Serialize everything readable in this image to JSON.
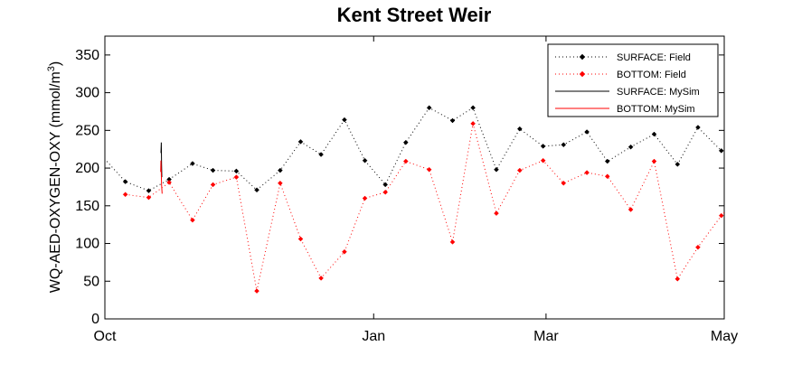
{
  "chart_data": {
    "type": "line",
    "title": "Kent Street Weir",
    "ylabel_main": "WQ-AED-OXYGEN-OXY (mmol/m",
    "ylabel_sup": "3",
    "ylabel_close": ")",
    "xlabel": "",
    "ylim": [
      0,
      375
    ],
    "yticks": [
      0,
      50,
      100,
      150,
      200,
      250,
      300,
      350
    ],
    "xlim": [
      0,
      212
    ],
    "xticks": [
      {
        "label": "Oct",
        "x": 0
      },
      {
        "label": "Jan",
        "x": 92
      },
      {
        "label": "Mar",
        "x": 151
      },
      {
        "label": "May",
        "x": 212
      }
    ],
    "grid": false,
    "legend_position": "top-right",
    "series": [
      {
        "name": "SURFACE: Field",
        "style": "dotted",
        "color": "#000000",
        "marker": "diamond",
        "x": [
          -1,
          7,
          15,
          22,
          30,
          37,
          45,
          52,
          60,
          67,
          74,
          82,
          89,
          96,
          103,
          111,
          119,
          126,
          134,
          142,
          150,
          157,
          165,
          172,
          180,
          188,
          196,
          203,
          211,
          218
        ],
        "y": [
          216,
          182,
          170,
          185,
          206,
          197,
          196,
          171,
          197,
          235,
          218,
          264,
          210,
          178,
          234,
          280,
          263,
          280,
          198,
          252,
          229,
          231,
          248,
          209,
          228,
          245,
          205,
          254,
          223,
          247
        ]
      },
      {
        "name": "BOTTOM: Field",
        "style": "dotted",
        "color": "#ff0000",
        "marker": "diamond",
        "x": [
          7,
          15,
          22,
          30,
          37,
          45,
          52,
          60,
          67,
          74,
          82,
          89,
          96,
          103,
          111,
          119,
          126,
          134,
          142,
          150,
          157,
          165,
          172,
          180,
          188,
          196,
          203,
          211,
          218
        ],
        "y": [
          165,
          161,
          181,
          131,
          178,
          188,
          37,
          180,
          106,
          54,
          89,
          160,
          168,
          209,
          198,
          102,
          259,
          140,
          197,
          210,
          180,
          194,
          189,
          145,
          209,
          53,
          95,
          137,
          165
        ]
      },
      {
        "name": "SURFACE: MySim",
        "style": "solid",
        "color": "#000000",
        "x": [
          19.2,
          19.3,
          19.4,
          19.5
        ],
        "y": [
          220,
          234,
          205,
          188
        ]
      },
      {
        "name": "BOTTOM: MySim",
        "style": "solid",
        "color": "#ff0000",
        "x": [
          19.1,
          19.2,
          19.4,
          19.6
        ],
        "y": [
          195,
          210,
          178,
          166
        ]
      }
    ]
  },
  "colors": {
    "axis": "#000000",
    "background": "#ffffff"
  }
}
